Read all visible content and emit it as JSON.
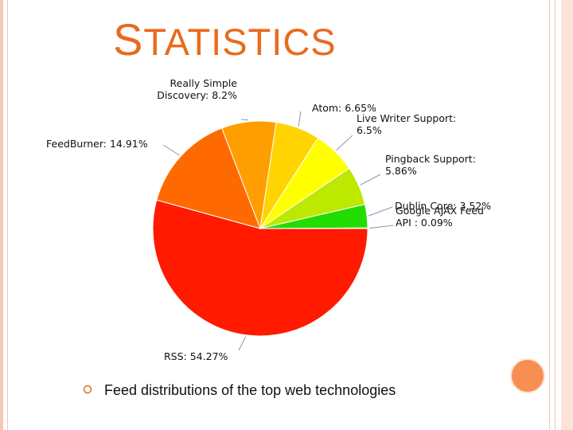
{
  "slide": {
    "title": "STATISTICS",
    "caption": "Feed distributions of the top web technologies",
    "accent_color": "#ea6a1e",
    "bullet_icon": "circle-bullet-icon"
  },
  "chart_data": {
    "type": "pie",
    "title": "",
    "start_angle_deg": 0,
    "direction": "clockwise",
    "slices": [
      {
        "label": "RSS",
        "value": 54.27,
        "display": [
          "RSS: 54.27%"
        ],
        "color": "#ff1a00"
      },
      {
        "label": "FeedBurner",
        "value": 14.91,
        "display": [
          "FeedBurner: 14.91%"
        ],
        "color": "#ff6a00"
      },
      {
        "label": "Really Simple Discovery",
        "value": 8.2,
        "display": [
          "Really Simple",
          "Discovery: 8.2%"
        ],
        "color": "#ff9e00"
      },
      {
        "label": "Atom",
        "value": 6.65,
        "display": [
          "Atom: 6.65%"
        ],
        "color": "#ffd400"
      },
      {
        "label": "Live Writer Support",
        "value": 6.5,
        "display": [
          "Live Writer Support:",
          "6.5%"
        ],
        "color": "#ffff00"
      },
      {
        "label": "Pingback Support",
        "value": 5.86,
        "display": [
          "Pingback Support:",
          "5.86%"
        ],
        "color": "#bde800"
      },
      {
        "label": "Dublin Core",
        "value": 3.52,
        "display": [
          "Dublin Core: 3.52%"
        ],
        "color": "#22dd00"
      },
      {
        "label": "Google AJAX Feed API",
        "value": 0.09,
        "display": [
          "Google AJAX Feed",
          "API  : 0.09%"
        ],
        "color": "#00b000"
      }
    ]
  }
}
